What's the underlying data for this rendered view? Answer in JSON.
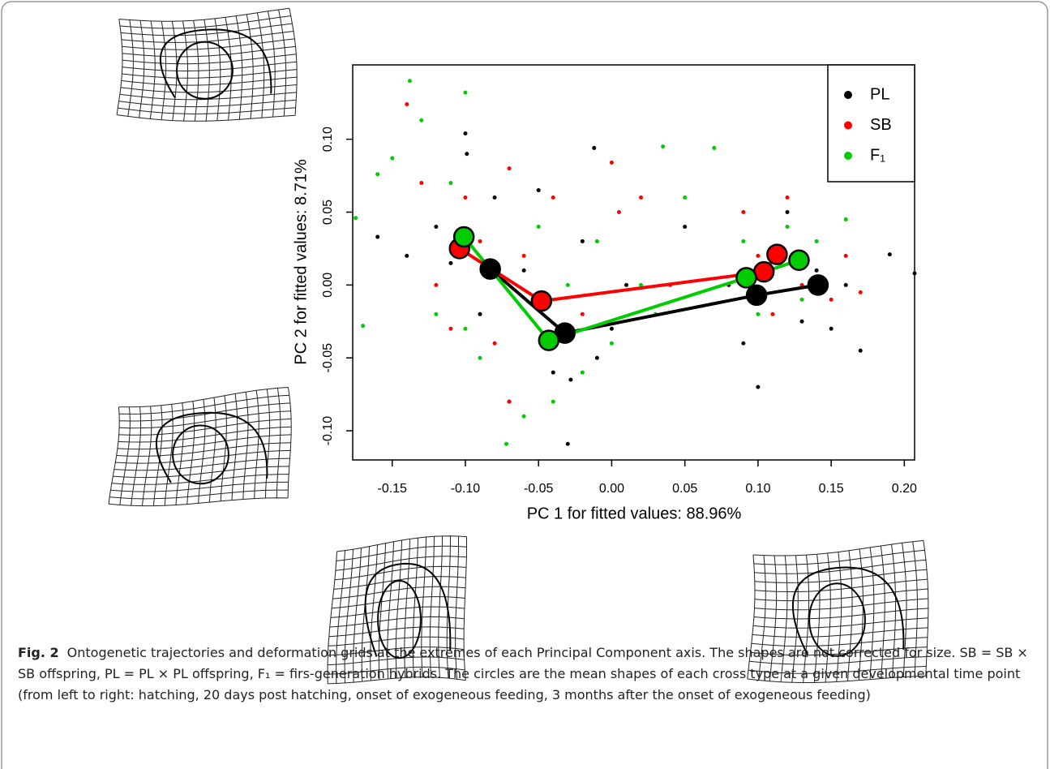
{
  "chart_data": {
    "type": "scatter",
    "xlabel": "PC 1 for fitted values: 88.96%",
    "ylabel": "PC 2 for fitted values: 8.71%",
    "xlim": [
      -0.177,
      0.207
    ],
    "ylim": [
      -0.12,
      0.151
    ],
    "xticks": [
      -0.15,
      {
        "value": -0.1,
        "label": "-0.10"
      },
      -0.05,
      {
        "value": 0,
        "label": "0.00"
      },
      0.05,
      {
        "value": 0.1,
        "label": "0.10"
      },
      0.15,
      {
        "value": 0.2,
        "label": "0.20"
      }
    ],
    "yticks": [
      {
        "value": -0.1,
        "label": "-0.10"
      },
      -0.05,
      {
        "value": 0,
        "label": "0.00"
      },
      0.05,
      {
        "value": 0.1,
        "label": "0.10"
      }
    ],
    "legend": "top-right",
    "series": [
      {
        "name": "PL",
        "color": "#000000",
        "x": [
          -0.16,
          -0.14,
          -0.12,
          -0.11,
          -0.1,
          -0.09,
          -0.08,
          -0.07,
          -0.06,
          -0.05,
          -0.04,
          -0.03,
          -0.02,
          -0.01,
          0,
          -0.012,
          0.01,
          0.05,
          0.08,
          0.09,
          0.1,
          0.11,
          0.12,
          0.13,
          0.14,
          0.15,
          0.16,
          0.17,
          0.19,
          0.207,
          -0.099,
          -0.028
        ],
        "y": [
          0.033,
          0.02,
          0.04,
          0.015,
          0.104,
          -0.02,
          0.06,
          -0.08,
          0.01,
          0.065,
          -0.06,
          -0.109,
          0.03,
          -0.05,
          -0.03,
          0.094,
          0,
          0.04,
          0,
          -0.04,
          -0.07,
          0.02,
          0.05,
          -0.025,
          0.01,
          -0.03,
          0,
          -0.045,
          0.021,
          0.008,
          0.09,
          -0.065
        ],
        "means": {
          "x": [
            -0.083,
            -0.032,
            0.099,
            0.141
          ],
          "y": [
            0.011,
            -0.033,
            -0.007,
            0
          ]
        }
      },
      {
        "name": "SB",
        "color": "#ff0000",
        "x": [
          -0.14,
          -0.13,
          -0.12,
          -0.11,
          -0.1,
          -0.09,
          -0.08,
          -0.07,
          -0.06,
          -0.04,
          -0.02,
          0,
          0.02,
          0.04,
          0.09,
          0.1,
          0.11,
          0.12,
          0.13,
          0.15,
          0.16,
          0.17,
          -0.07,
          0.005,
          0.095
        ],
        "y": [
          0.124,
          0.07,
          0,
          -0.03,
          0.06,
          0.03,
          -0.04,
          -0.08,
          0.02,
          0.06,
          -0.02,
          0.084,
          0.06,
          0,
          0.05,
          0.02,
          -0.02,
          0.06,
          0,
          -0.01,
          0.02,
          -0.005,
          0.08,
          0.05,
          -0.01
        ],
        "means": {
          "x": [
            -0.104,
            -0.048,
            0.104,
            0.113
          ],
          "y": [
            0.025,
            -0.011,
            0.009,
            0.021
          ]
        }
      },
      {
        "name": "F₁",
        "color": "#00cc00",
        "x": [
          -0.175,
          -0.17,
          -0.16,
          -0.15,
          -0.138,
          -0.13,
          -0.12,
          -0.11,
          -0.1,
          -0.09,
          -0.08,
          -0.072,
          -0.06,
          -0.05,
          -0.04,
          -0.03,
          -0.02,
          -0.01,
          0,
          0.02,
          0.03,
          0.05,
          0.07,
          0.09,
          0.1,
          0.11,
          0.12,
          0.13,
          0.14,
          0.16,
          -0.1,
          0.035
        ],
        "y": [
          0.046,
          -0.028,
          0.076,
          0.087,
          0.14,
          0.113,
          -0.02,
          0.07,
          0.132,
          -0.05,
          0.01,
          -0.109,
          -0.09,
          0.04,
          -0.08,
          0,
          -0.06,
          0.03,
          -0.04,
          0,
          -0.02,
          0.06,
          0.094,
          0.03,
          -0.02,
          0.01,
          0.04,
          -0.01,
          0.03,
          0.045,
          -0.03,
          0.095
        ],
        "means": {
          "x": [
            -0.101,
            -0.043,
            0.092,
            0.128
          ],
          "y": [
            0.033,
            -0.038,
            0.005,
            0.017
          ]
        }
      }
    ]
  },
  "caption": {
    "label": "Fig. 2",
    "text": "Ontogenetic trajectories and deformation grids at the extremes of each Principal Component axis. The shapes are not corrected for size. SB = SB × SB offspring, PL = PL × PL offspring, F₁ = firs-generation hybrids. The circles are the mean shapes of each cross type at a given developmental time point (from left to right: hatching, 20 days post hatching, onset of exogeneous feeding, 3 months after the onset of exogeneous feeding)"
  }
}
